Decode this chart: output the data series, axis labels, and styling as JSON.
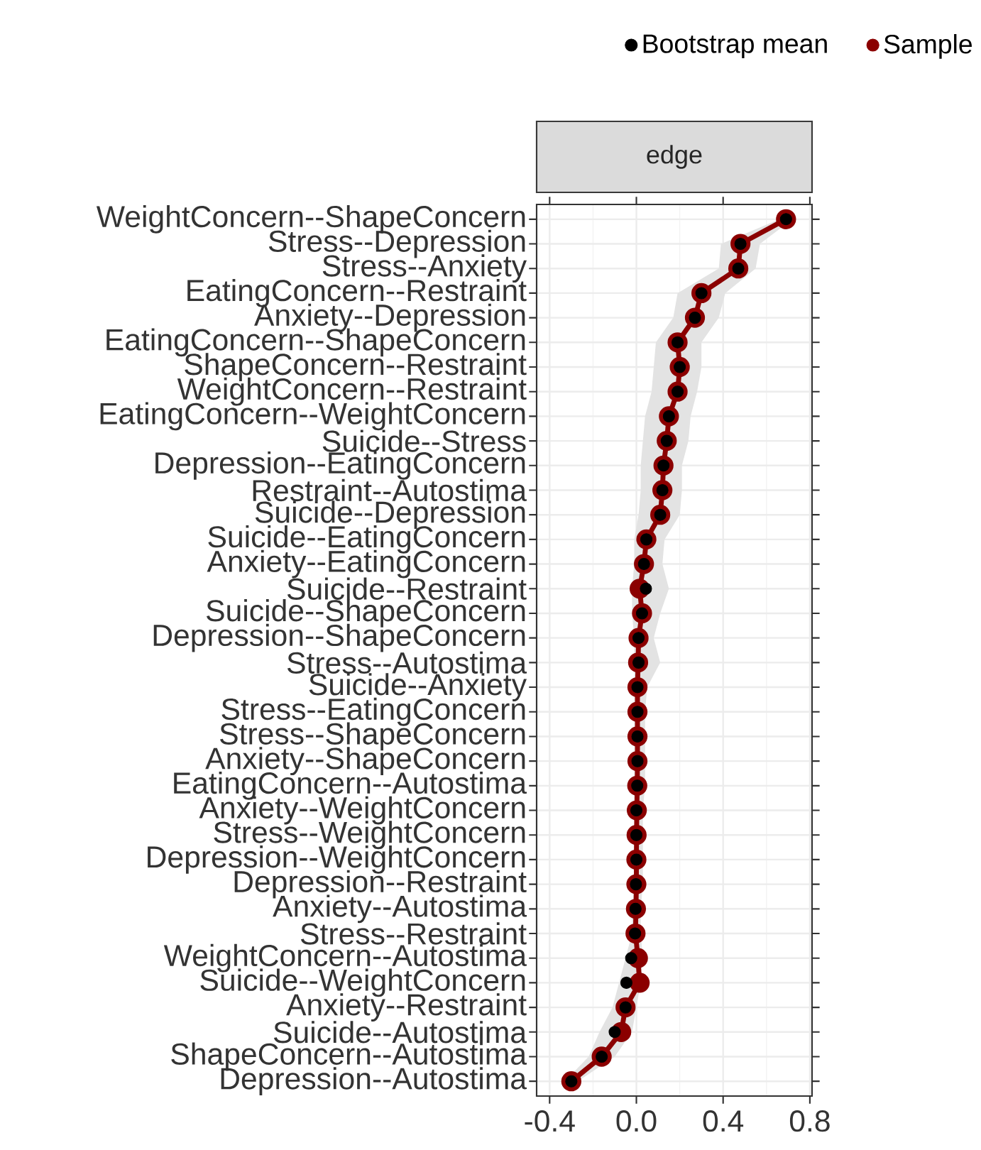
{
  "chart_data": {
    "type": "line",
    "title": "edge",
    "orientation": "horizontal",
    "categories": [
      "WeightConcern--ShapeConcern",
      "Stress--Depression",
      "Stress--Anxiety",
      "EatingConcern--Restraint",
      "Anxiety--Depression",
      "EatingConcern--ShapeConcern",
      "ShapeConcern--Restraint",
      "WeightConcern--Restraint",
      "EatingConcern--WeightConcern",
      "Suicide--Stress",
      "Depression--EatingConcern",
      "Restraint--Autostima",
      "Suicide--Depression",
      "Suicide--EatingConcern",
      "Anxiety--EatingConcern",
      "Suicide--Restraint",
      "Suicide--ShapeConcern",
      "Depression--ShapeConcern",
      "Stress--Autostima",
      "Suicide--Anxiety",
      "Stress--EatingConcern",
      "Stress--ShapeConcern",
      "Anxiety--ShapeConcern",
      "EatingConcern--Autostima",
      "Anxiety--WeightConcern",
      "Stress--WeightConcern",
      "Depression--WeightConcern",
      "Depression--Restraint",
      "Anxiety--Autostima",
      "Stress--Restraint",
      "WeightConcern--Autostima",
      "Suicide--WeightConcern",
      "Anxiety--Restraint",
      "Suicide--Autostima",
      "ShapeConcern--Autostima",
      "Depression--Autostima"
    ],
    "series": [
      {
        "name": "Bootstrap mean",
        "type": "scatter",
        "color": "#000000",
        "marker": "circle",
        "values": [
          0.69,
          0.48,
          0.47,
          0.3,
          0.27,
          0.19,
          0.2,
          0.19,
          0.15,
          0.14,
          0.125,
          0.12,
          0.11,
          0.046,
          0.035,
          0.044,
          0.026,
          0.01,
          0.01,
          0.005,
          0.005,
          0.005,
          0.005,
          0.004,
          0.0,
          0.0,
          0.0,
          -0.002,
          -0.004,
          -0.006,
          -0.024,
          -0.046,
          -0.05,
          -0.1,
          -0.16,
          -0.3
        ]
      },
      {
        "name": "Sample",
        "color": "#8b0000",
        "marker": "circle",
        "values": [
          0.69,
          0.48,
          0.47,
          0.3,
          0.27,
          0.19,
          0.2,
          0.19,
          0.15,
          0.14,
          0.125,
          0.12,
          0.11,
          0.046,
          0.035,
          0.015,
          0.026,
          0.01,
          0.008,
          0.005,
          0.005,
          0.005,
          0.005,
          0.004,
          0.002,
          0.001,
          0.0,
          0.0,
          -0.002,
          -0.004,
          0.007,
          0.015,
          -0.05,
          -0.07,
          -0.16,
          -0.3
        ],
        "lower": [
          0.66,
          0.39,
          0.38,
          0.19,
          0.17,
          0.09,
          0.08,
          0.07,
          0.04,
          0.03,
          0.02,
          0.02,
          0.01,
          -0.01,
          -0.01,
          -0.02,
          -0.02,
          -0.01,
          -0.01,
          -0.01,
          -0.01,
          -0.01,
          -0.01,
          -0.01,
          -0.01,
          -0.01,
          -0.01,
          -0.01,
          -0.02,
          -0.02,
          -0.05,
          -0.08,
          -0.11,
          -0.17,
          -0.22,
          -0.33
        ],
        "upper": [
          0.72,
          0.57,
          0.55,
          0.41,
          0.38,
          0.3,
          0.3,
          0.28,
          0.25,
          0.24,
          0.21,
          0.21,
          0.2,
          0.13,
          0.12,
          0.15,
          0.11,
          0.08,
          0.11,
          0.05,
          0.04,
          0.04,
          0.04,
          0.04,
          0.03,
          0.03,
          0.03,
          0.03,
          0.02,
          0.02,
          0.03,
          0.02,
          0.0,
          -0.02,
          -0.1,
          -0.27
        ]
      }
    ],
    "xlim": [
      -0.46,
      0.81
    ],
    "xticks": [
      -0.4,
      {
        "value": 0,
        "label": "0.0"
      },
      0.4,
      0.8
    ],
    "grid": true,
    "legend": "top right"
  }
}
